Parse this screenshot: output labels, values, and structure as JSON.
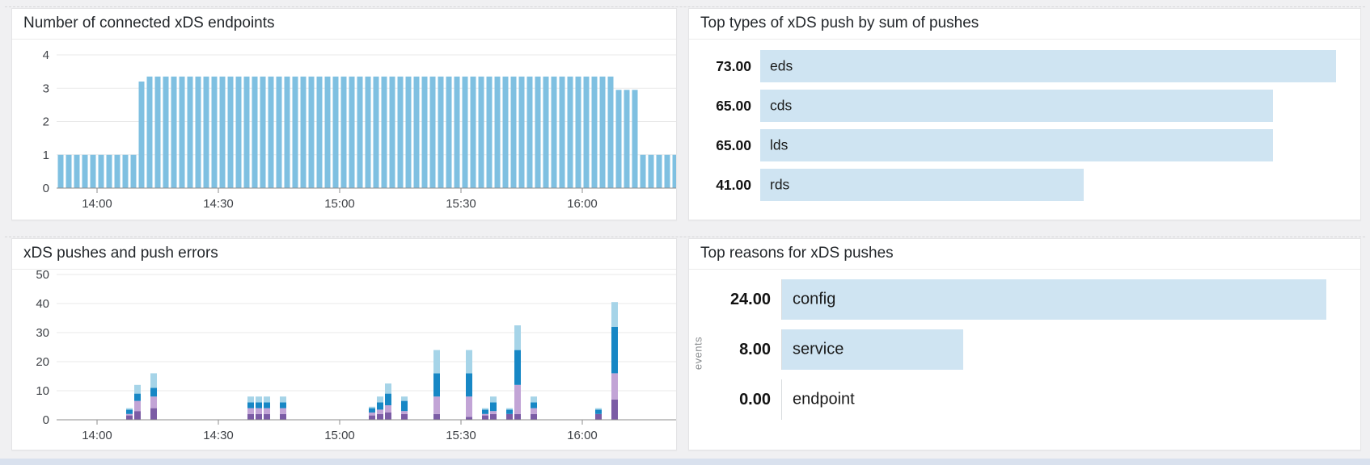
{
  "page": {
    "background": "#f0f0f2",
    "panel_background": "#ffffff",
    "accent_bar_blue": "#7fc0e1",
    "accent_hbar_blue": "#cfe4f2"
  },
  "chart_data": [
    {
      "id": "connected-xds-endpoints",
      "type": "bar",
      "title": "Number of connected xDS endpoints",
      "xlabel": "",
      "ylabel": "",
      "x_start": "13:50",
      "x_end": "16:24",
      "step_minutes": 2,
      "x_ticks": [
        "14:00",
        "14:30",
        "15:00",
        "15:30",
        "16:00"
      ],
      "y_ticks": [
        0,
        1,
        2,
        3,
        4
      ],
      "ylim": [
        0,
        4
      ],
      "grid": true,
      "legend_position": "none",
      "bar_color": "#7fc0e1",
      "values": [
        1,
        1,
        1,
        1,
        1,
        1,
        1,
        1,
        1,
        1,
        3.2,
        3.35,
        3.35,
        3.35,
        3.35,
        3.35,
        3.35,
        3.35,
        3.35,
        3.35,
        3.35,
        3.35,
        3.35,
        3.35,
        3.35,
        3.35,
        3.35,
        3.35,
        3.35,
        3.35,
        3.35,
        3.35,
        3.35,
        3.35,
        3.35,
        3.35,
        3.35,
        3.35,
        3.35,
        3.35,
        3.35,
        3.35,
        3.35,
        3.35,
        3.35,
        3.35,
        3.35,
        3.35,
        3.35,
        3.35,
        3.35,
        3.35,
        3.35,
        3.35,
        3.35,
        3.35,
        3.35,
        3.35,
        3.35,
        3.35,
        3.35,
        3.35,
        3.35,
        3.35,
        3.35,
        3.35,
        3.35,
        3.35,
        3.35,
        2.95,
        2.95,
        2.95,
        1,
        1,
        1,
        1,
        1
      ]
    },
    {
      "id": "top-xds-push-types",
      "type": "bar",
      "orientation": "horizontal",
      "title": "Top types of xDS push by sum of pushes",
      "categories": [
        "eds",
        "cds",
        "lds",
        "rds"
      ],
      "values": [
        73,
        65,
        65,
        41
      ],
      "value_labels": [
        "73.00",
        "65.00",
        "65.00",
        "41.00"
      ],
      "max": 73,
      "bar_color": "#cfe4f2",
      "legend_position": "none"
    },
    {
      "id": "xds-pushes-and-push-errors",
      "type": "bar",
      "stacked": true,
      "title": "xDS pushes and push errors",
      "x_start": "13:50",
      "x_end": "16:24",
      "x_ticks": [
        "14:00",
        "14:30",
        "15:00",
        "15:30",
        "16:00"
      ],
      "y_ticks": [
        0,
        10,
        20,
        30,
        40,
        50
      ],
      "ylim": [
        0,
        50
      ],
      "grid": true,
      "legend_position": "none",
      "series_colors": [
        "#7b5ca5",
        "#c2a4d6",
        "#1787c5",
        "#a6d4e8"
      ],
      "bars": [
        {
          "time": "14:08",
          "segments": [
            1.5,
            0.5,
            1.5,
            0.5
          ]
        },
        {
          "time": "14:10",
          "segments": [
            3,
            3.5,
            2.5,
            3
          ]
        },
        {
          "time": "14:14",
          "segments": [
            4,
            4,
            3,
            5
          ]
        },
        {
          "time": "14:38",
          "segments": [
            2,
            2,
            2,
            2
          ]
        },
        {
          "time": "14:40",
          "segments": [
            2,
            2,
            2,
            2
          ]
        },
        {
          "time": "14:42",
          "segments": [
            2,
            2,
            2,
            2
          ]
        },
        {
          "time": "14:46",
          "segments": [
            2,
            2,
            2,
            2
          ]
        },
        {
          "time": "15:08",
          "segments": [
            1.5,
            1,
            1.5,
            0.5
          ]
        },
        {
          "time": "15:10",
          "segments": [
            2,
            1.5,
            2.5,
            2
          ]
        },
        {
          "time": "15:12",
          "segments": [
            2.5,
            2.5,
            4,
            3.5
          ]
        },
        {
          "time": "15:16",
          "segments": [
            2,
            1,
            3.5,
            1.5
          ]
        },
        {
          "time": "15:24",
          "segments": [
            2,
            6,
            8,
            8
          ]
        },
        {
          "time": "15:32",
          "segments": [
            1,
            7,
            8,
            8
          ]
        },
        {
          "time": "15:36",
          "segments": [
            1.5,
            0.5,
            1.5,
            0.5
          ]
        },
        {
          "time": "15:38",
          "segments": [
            2,
            1,
            3,
            2
          ]
        },
        {
          "time": "15:42",
          "segments": [
            2,
            0,
            1.5,
            0.5
          ]
        },
        {
          "time": "15:44",
          "segments": [
            2,
            10,
            12,
            8.5
          ]
        },
        {
          "time": "15:48",
          "segments": [
            2,
            2,
            2,
            2
          ]
        },
        {
          "time": "16:04",
          "segments": [
            2,
            0,
            1.5,
            0.5
          ]
        },
        {
          "time": "16:08",
          "segments": [
            7,
            9,
            16,
            8.5
          ]
        }
      ]
    },
    {
      "id": "top-xds-push-reasons",
      "type": "bar",
      "orientation": "horizontal",
      "title": "Top reasons for xDS pushes",
      "ylabel": "events",
      "categories": [
        "config",
        "service",
        "endpoint"
      ],
      "values": [
        24,
        8,
        0
      ],
      "value_labels": [
        "24.00",
        "8.00",
        "0.00"
      ],
      "max": 24,
      "bar_color": "#cfe4f2",
      "legend_position": "none"
    }
  ]
}
